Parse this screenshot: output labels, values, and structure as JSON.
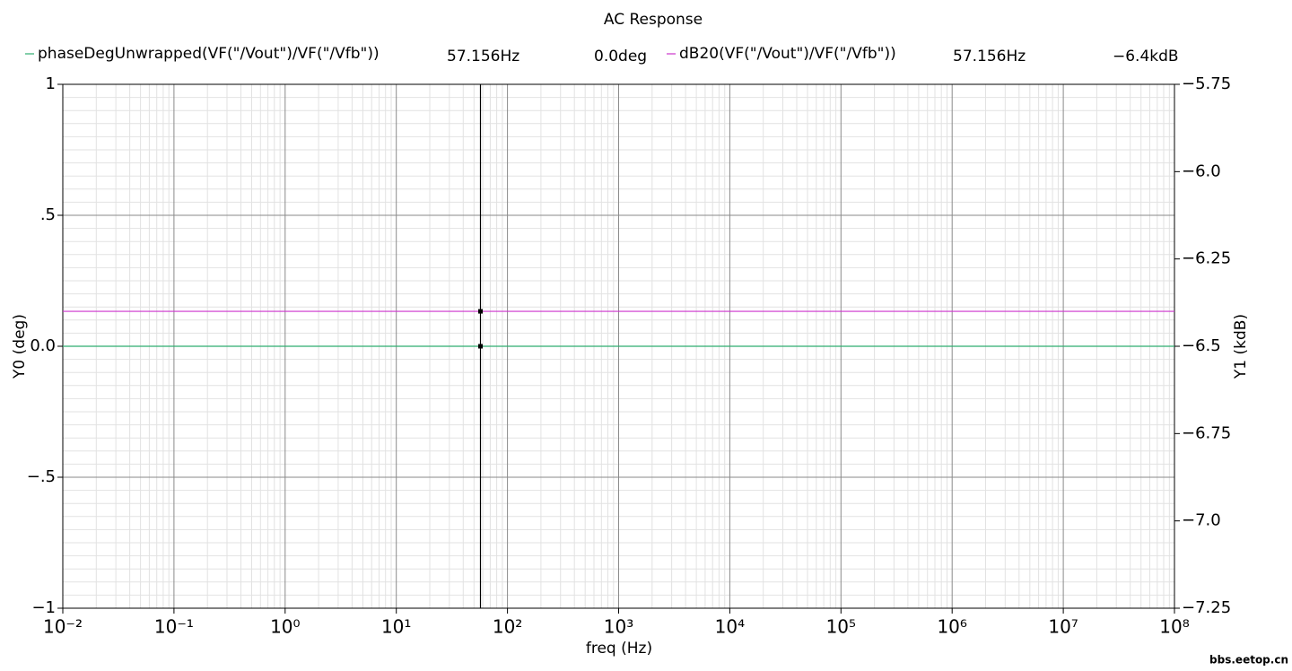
{
  "chart_data": {
    "type": "line",
    "title": "AC Response",
    "x_label": "freq (Hz)",
    "y_label": "Y0 (deg)",
    "y2_label": "Y1 (kdB)",
    "watermark": "bbs.eetop.cn",
    "log_x": true,
    "grid": true,
    "x": [
      0.01,
      100000000
    ],
    "series": [
      {
        "name": "phaseDegUnwrapped(VF(\"/Vout\")/VF(\"/Vfb\"))",
        "color": "#2fae6f",
        "values": [
          0,
          0
        ],
        "axis": "y"
      },
      {
        "name": "dB20(VF(\"/Vout\")/VF(\"/Vfb\"))",
        "color": "#cc33cc",
        "values": [
          -6.4,
          -6.4
        ],
        "axis": "y2"
      }
    ],
    "marker": {
      "x": 57.156,
      "x_label": "57.156Hz",
      "readouts": [
        {
          "value": 0,
          "label": "0.0deg"
        },
        {
          "value": -6.4,
          "label": "−6.4kdB"
        }
      ]
    },
    "xlim": [
      0.01,
      100000000
    ],
    "xticks": [
      {
        "value": 0.01,
        "label": "10⁻²"
      },
      {
        "value": 0.1,
        "label": "10⁻¹"
      },
      {
        "value": 1,
        "label": "10⁰"
      },
      {
        "value": 10,
        "label": "10¹"
      },
      {
        "value": 100,
        "label": "10²"
      },
      {
        "value": 1000,
        "label": "10³"
      },
      {
        "value": 10000,
        "label": "10⁴"
      },
      {
        "value": 100000,
        "label": "10⁵"
      },
      {
        "value": 1000000,
        "label": "10⁶"
      },
      {
        "value": 10000000,
        "label": "10⁷"
      },
      {
        "value": 100000000,
        "label": "10⁸"
      }
    ],
    "ylim": [
      -1,
      1
    ],
    "yticks": [
      {
        "value": -1,
        "label": "−1"
      },
      {
        "value": -0.5,
        "label": "−.5"
      },
      {
        "value": 0,
        "label": "0.0"
      },
      {
        "value": 0.5,
        "label": ".5"
      },
      1
    ],
    "y2lim": [
      -7.25,
      -5.75
    ],
    "y2ticks": [
      {
        "value": -7.25,
        "label": "−7.25"
      },
      {
        "value": -7.0,
        "label": "−7.0"
      },
      {
        "value": -6.75,
        "label": "−6.75"
      },
      {
        "value": -6.5,
        "label": "−6.5"
      },
      {
        "value": -6.25,
        "label": "−6.25"
      },
      {
        "value": -6.0,
        "label": "−6.0"
      },
      {
        "value": -5.75,
        "label": "−5.75"
      }
    ]
  }
}
